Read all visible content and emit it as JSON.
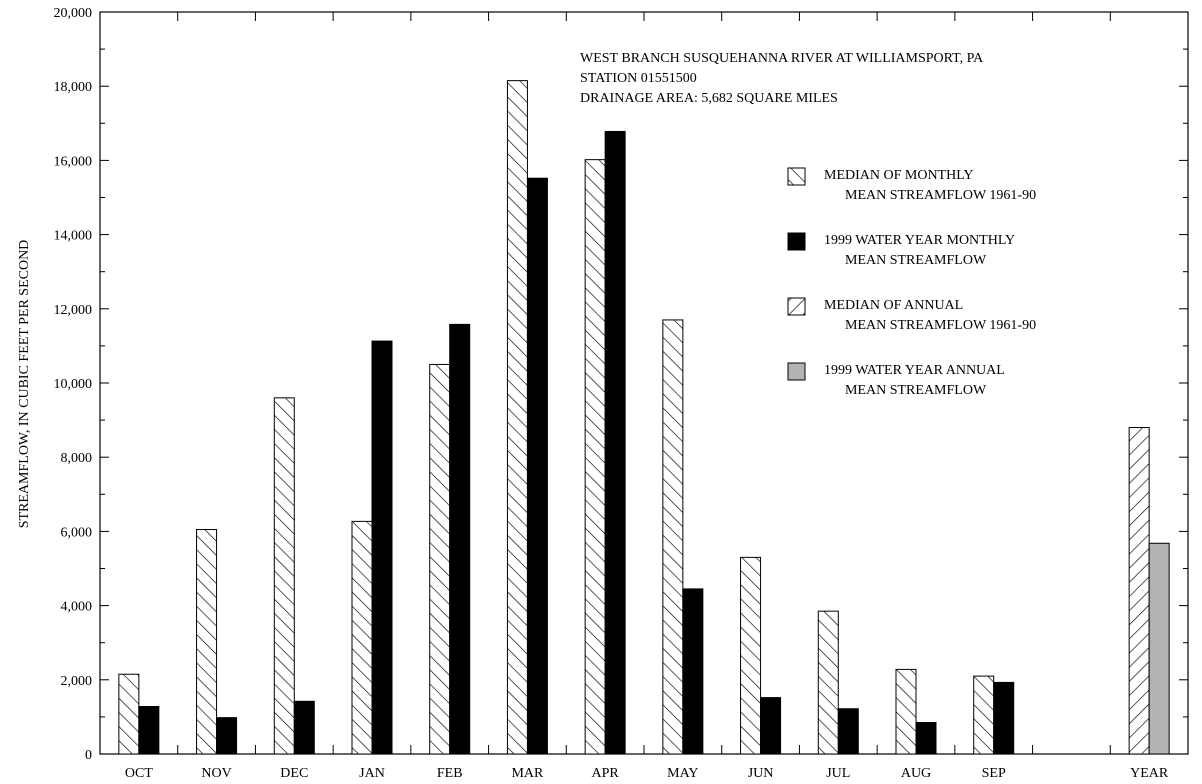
{
  "chart_data": {
    "type": "bar",
    "ylabel": "STREAMFLOW, IN CUBIC FEET PER SECOND",
    "xlabel": "",
    "ylim": [
      0,
      20000
    ],
    "yticks": [
      "0",
      "2,000",
      "4,000",
      "6,000",
      "8,000",
      "10,000",
      "12,000",
      "14,000",
      "16,000",
      "18,000",
      "20,000"
    ],
    "categories": [
      "OCT",
      "NOV",
      "DEC",
      "JAN",
      "FEB",
      "MAR",
      "APR",
      "MAY",
      "JUN",
      "JUL",
      "AUG",
      "SEP"
    ],
    "series": [
      {
        "name": "MEDIAN OF MONTHLY MEAN STREAMFLOW 1961-90",
        "values": [
          2150,
          6050,
          9600,
          6270,
          10500,
          18150,
          16020,
          11700,
          5300,
          3850,
          2280,
          2100
        ]
      },
      {
        "name": "1999 WATER YEAR MONTHLY MEAN STREAMFLOW",
        "values": [
          1280,
          980,
          1420,
          11130,
          11580,
          15520,
          16780,
          4450,
          1520,
          1220,
          850,
          1930
        ]
      }
    ],
    "annual": {
      "category": "YEAR",
      "series": [
        {
          "name": "MEDIAN OF ANNUAL MEAN STREAMFLOW 1961-90",
          "value": 8800
        },
        {
          "name": "1999 WATER YEAR ANNUAL MEAN STREAMFLOW",
          "value": 5680
        }
      ]
    },
    "station_info": [
      "WEST BRANCH SUSQUEHANNA RIVER AT WILLIAMSPORT, PA",
      "STATION 01551500",
      "DRAINAGE AREA: 5,682 SQUARE MILES"
    ],
    "legend": [
      {
        "pattern": "hatch-forward",
        "line1": "MEDIAN OF MONTHLY",
        "line2": "MEAN STREAMFLOW 1961-90"
      },
      {
        "pattern": "solid-black",
        "line1": "1999 WATER YEAR MONTHLY",
        "line2": "MEAN STREAMFLOW"
      },
      {
        "pattern": "hatch-back",
        "line1": "MEDIAN OF ANNUAL",
        "line2": "MEAN STREAMFLOW 1961-90"
      },
      {
        "pattern": "solid-gray",
        "line1": "1999 WATER YEAR ANNUAL",
        "line2": "MEAN STREAMFLOW"
      }
    ],
    "legend_placement": "right",
    "grid": false,
    "colors": {
      "monthly_1999": "#000000",
      "annual_1999": "#b3b3b3",
      "hatch": "#000000"
    }
  }
}
